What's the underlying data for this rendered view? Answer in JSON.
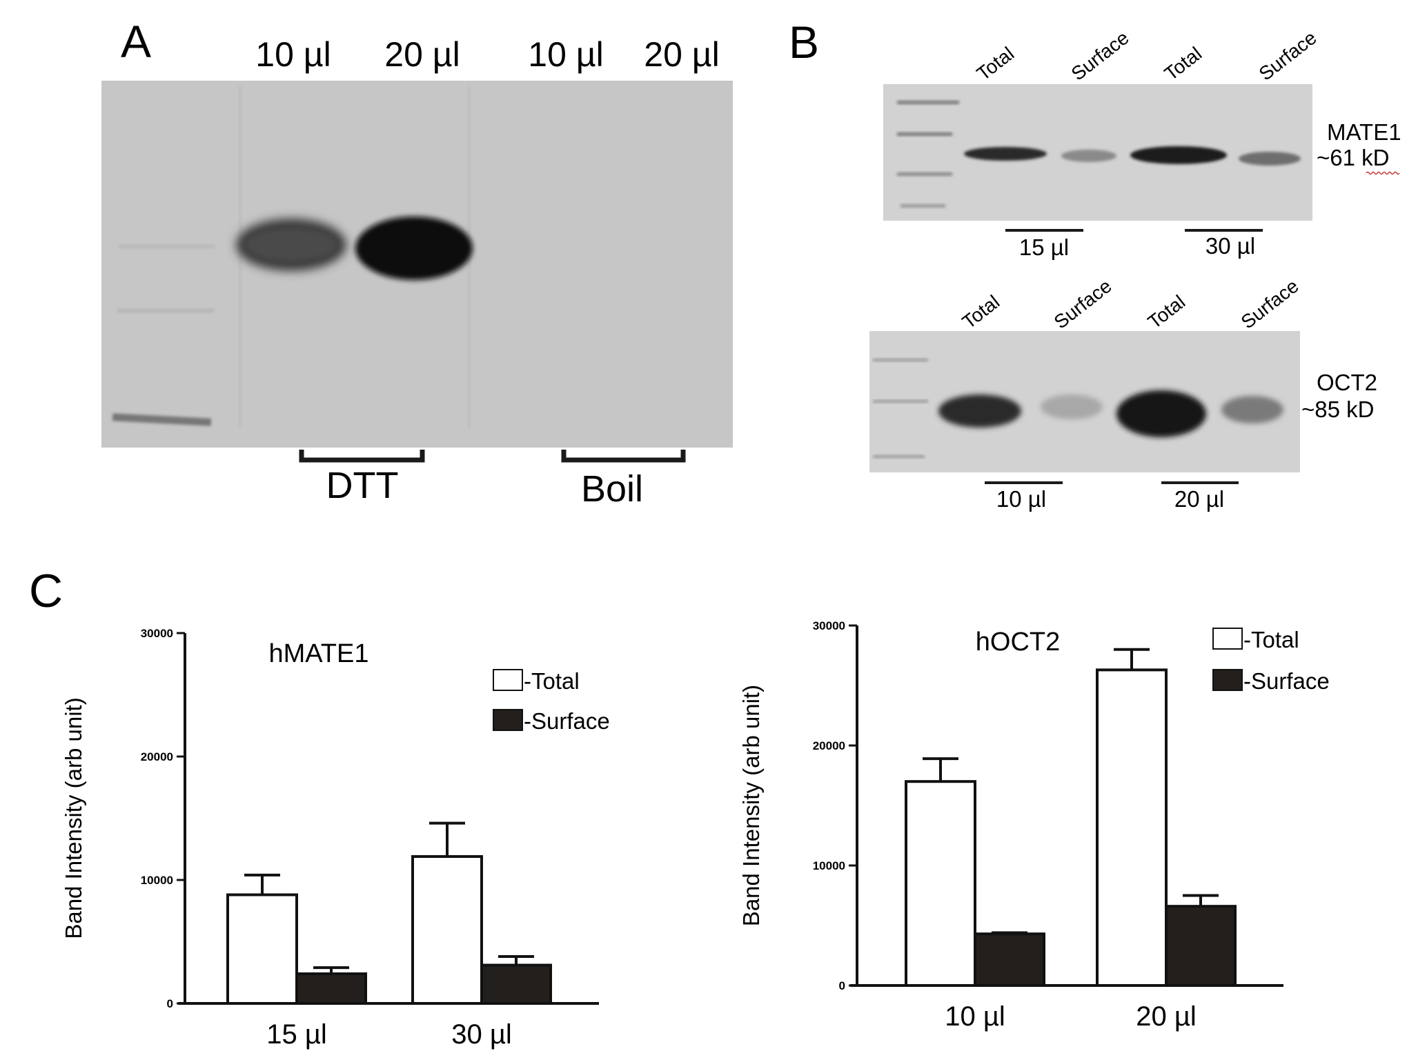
{
  "panels": {
    "a": {
      "letter": "A",
      "lane_labels": [
        "10 µl",
        "20 µl",
        "10 µl",
        "20 µl"
      ],
      "group_labels": [
        "DTT",
        "Boil"
      ]
    },
    "b": {
      "letter": "B",
      "mate1_blot": {
        "lane_labels": [
          "Total",
          "Surface",
          "Total",
          "Surface"
        ],
        "protein": "MATE1",
        "size": "~61 kD",
        "group_labels": [
          "15 µl",
          "30 µl"
        ]
      },
      "oct2_blot": {
        "lane_labels": [
          "Total",
          "Surface",
          "Total",
          "Surface"
        ],
        "protein": "OCT2",
        "size": "~85 kD",
        "group_labels": [
          "10 µl",
          "20 µl"
        ]
      }
    },
    "c": {
      "letter": "C"
    }
  },
  "colors": {
    "blot_background": "#c6c6c6",
    "band": "#111111",
    "total_bar": "#ffffff",
    "surface_bar": "#231f1c"
  },
  "chart_data": [
    {
      "type": "bar",
      "title": "hMATE1",
      "categories": [
        "15 µl",
        "30 µl"
      ],
      "series": [
        {
          "name": "-Total",
          "values": [
            8800,
            11900
          ],
          "errors": [
            1600,
            2700
          ]
        },
        {
          "name": "-Surface",
          "values": [
            2400,
            3100
          ],
          "errors": [
            500,
            700
          ]
        }
      ],
      "xlabel": "",
      "ylabel": "Band Intensity (arb unit)",
      "ylim": [
        0,
        30000
      ],
      "yticks": [
        "0",
        "10000",
        "20000",
        "30000"
      ],
      "legend": "top-right",
      "grid": false
    },
    {
      "type": "bar",
      "title": "hOCT2",
      "categories": [
        "10 µl",
        "20 µl"
      ],
      "series": [
        {
          "name": "-Total",
          "values": [
            17000,
            26300
          ],
          "errors": [
            1900,
            1700
          ]
        },
        {
          "name": "-Surface",
          "values": [
            4300,
            6600
          ],
          "errors": [
            100,
            900
          ]
        }
      ],
      "xlabel": "",
      "ylabel": "Band Intensity (arb unit)",
      "ylim": [
        0,
        30000
      ],
      "yticks": [
        "0",
        "10000",
        "20000",
        "30000"
      ],
      "legend": "top-right",
      "grid": false
    }
  ]
}
